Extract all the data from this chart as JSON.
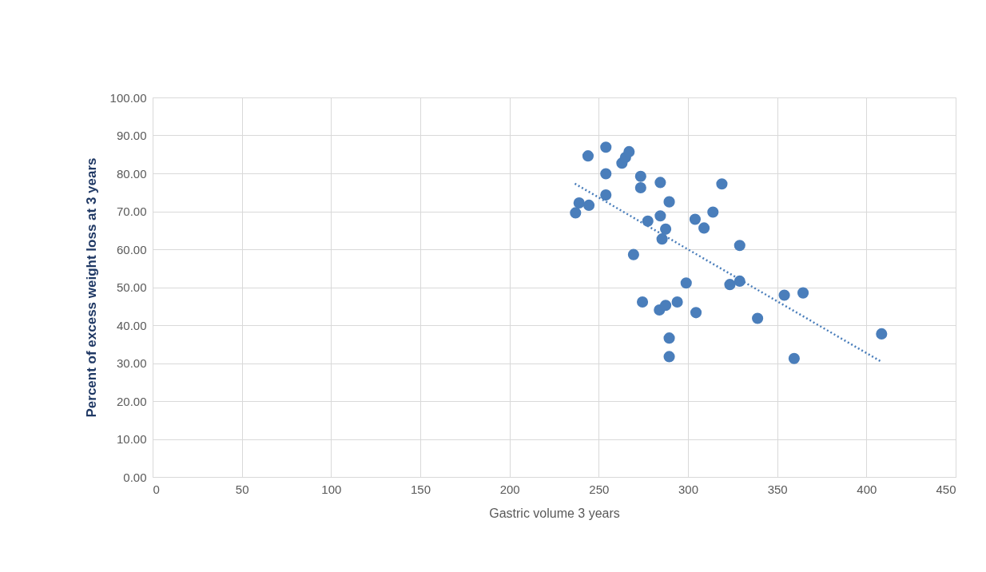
{
  "chart_data": {
    "type": "scatter",
    "xlabel": "Gastric volume 3 years",
    "ylabel": "Percent of excess weight loss at 3 years",
    "xlim": [
      0,
      450
    ],
    "xticks": [
      0,
      50,
      100,
      150,
      200,
      250,
      300,
      350,
      400,
      450
    ],
    "ylim": [
      0,
      100
    ],
    "yticks": [
      {
        "value": 0,
        "label": "0.00"
      },
      {
        "value": 10,
        "label": "10.00"
      },
      {
        "value": 20,
        "label": "20.00"
      },
      {
        "value": 30,
        "label": "30.00"
      },
      {
        "value": 40,
        "label": "40.00"
      },
      {
        "value": 50,
        "label": "50.00"
      },
      {
        "value": 60,
        "label": "60.00"
      },
      {
        "value": 70,
        "label": "70.00"
      },
      {
        "value": 80,
        "label": "80.00"
      },
      {
        "value": 90,
        "label": "90.00"
      },
      {
        "value": 100,
        "label": "100.00"
      }
    ],
    "grid": true,
    "legend": false,
    "series": [
      {
        "color": "#4a7ebb",
        "marker": "circle",
        "x": [
          244,
          254,
          254,
          254,
          263,
          265,
          267,
          273.5,
          273.5,
          284.5,
          319,
          289.5,
          239,
          244.5,
          237,
          314,
          304,
          309,
          277.5,
          284.5,
          287.5,
          285.5,
          269.5,
          329,
          299,
          323.5,
          329,
          274.5,
          284,
          287.5,
          294,
          304.5,
          339,
          289.5,
          289.5,
          354,
          364.5,
          359.5,
          408.5
        ],
        "values": [
          84.6,
          86.9,
          79.9,
          74.3,
          82.7,
          84.2,
          85.7,
          79.2,
          76.2,
          77.6,
          77.2,
          72.5,
          72.2,
          71.6,
          69.6,
          69.8,
          67.9,
          65.6,
          67.4,
          68.8,
          65.3,
          62.7,
          58.6,
          61.0,
          51.1,
          50.7,
          51.6,
          46.1,
          44.0,
          45.2,
          46.1,
          43.3,
          41.8,
          36.6,
          31.7,
          47.9,
          48.5,
          31.2,
          37.7
        ]
      },
      {
        "type": "line",
        "color": "#4a7ebb",
        "line_style": "dotted",
        "marker": "none",
        "x": [
          236.6,
          408.2
        ],
        "values": [
          77.3,
          30.4
        ]
      }
    ]
  }
}
